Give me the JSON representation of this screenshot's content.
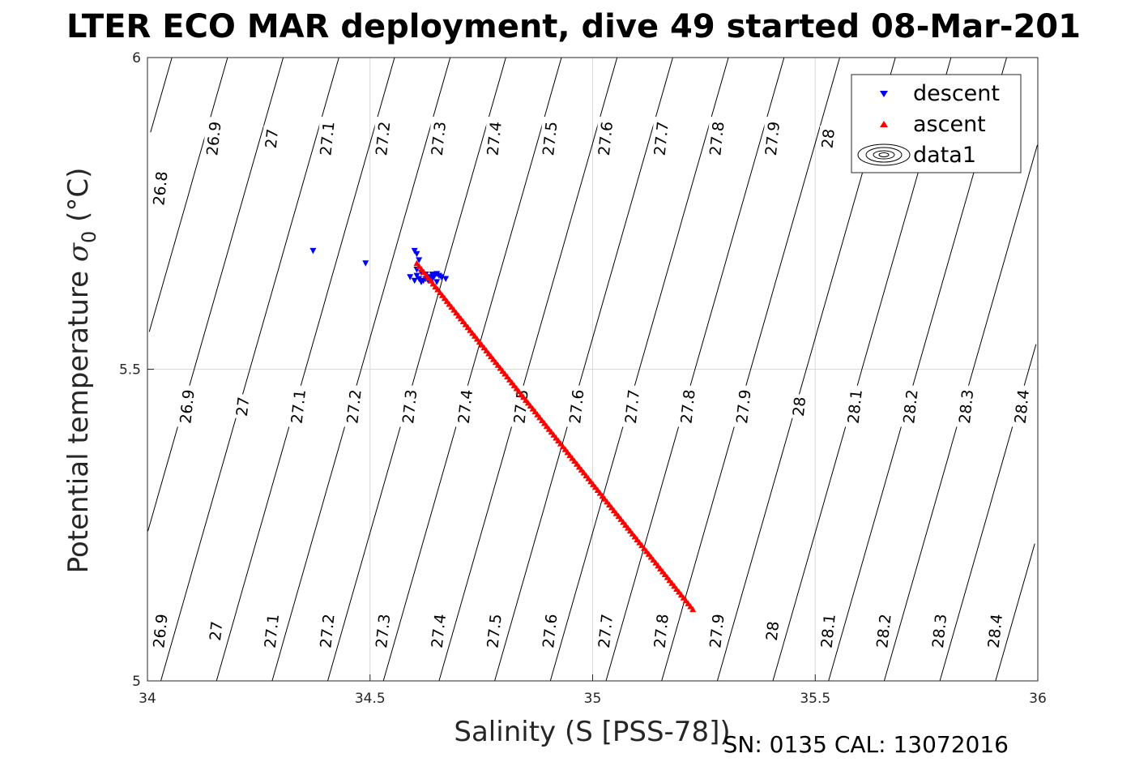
{
  "chart_data": {
    "type": "scatter",
    "title": "LTER ECO MAR deployment, dive 49 started 08-Mar-201",
    "xlabel": "Salinity (S [PSS-78])",
    "ylabel_main": "Potential temperature ",
    "ylabel_sigma": "σ",
    "ylabel_sub": "0",
    "ylabel_unit": " (°C)",
    "footer": "SN: 0135  CAL: 13072016",
    "xlim": [
      34,
      36
    ],
    "ylim": [
      5,
      6
    ],
    "x_ticks": [
      "34",
      "34.5",
      "35",
      "35.5",
      "36"
    ],
    "y_ticks": [
      "5",
      "5.5",
      "6"
    ],
    "grid": true,
    "legend_position": "top-right",
    "legend": [
      "descent",
      "ascent",
      "data1"
    ],
    "colors": {
      "descent": "#0000ff",
      "ascent": "#ff0000",
      "contour": "#000000",
      "grid": "#d9d9d9"
    },
    "contours": {
      "levels": [
        "26.8",
        "26.9",
        "27",
        "27.1",
        "27.2",
        "27.3",
        "27.4",
        "27.5",
        "27.6",
        "27.7",
        "27.8",
        "27.9",
        "28",
        "28.1",
        "28.2",
        "28.3",
        "28.4"
      ],
      "top_labels": [
        {
          "text": "26.8",
          "s": 34.03,
          "t": 5.79
        },
        {
          "text": "26.9",
          "s": 34.15,
          "t": 5.87
        },
        {
          "text": "27",
          "s": 34.28,
          "t": 5.87
        },
        {
          "text": "27.1",
          "s": 34.405,
          "t": 5.87
        },
        {
          "text": "27.2",
          "s": 34.53,
          "t": 5.87
        },
        {
          "text": "27.3",
          "s": 34.655,
          "t": 5.87
        },
        {
          "text": "27.4",
          "s": 34.78,
          "t": 5.87
        },
        {
          "text": "27.5",
          "s": 34.905,
          "t": 5.87
        },
        {
          "text": "27.6",
          "s": 35.03,
          "t": 5.87
        },
        {
          "text": "27.7",
          "s": 35.155,
          "t": 5.87
        },
        {
          "text": "27.8",
          "s": 35.28,
          "t": 5.87
        },
        {
          "text": "27.9",
          "s": 35.405,
          "t": 5.87
        },
        {
          "text": "28",
          "s": 35.53,
          "t": 5.87
        }
      ],
      "mid_labels": [
        {
          "text": "26.9",
          "s": 34.09,
          "t": 5.44
        },
        {
          "text": "27",
          "s": 34.215,
          "t": 5.44
        },
        {
          "text": "27.1",
          "s": 34.34,
          "t": 5.44
        },
        {
          "text": "27.2",
          "s": 34.465,
          "t": 5.44
        },
        {
          "text": "27.3",
          "s": 34.59,
          "t": 5.44
        },
        {
          "text": "27.4",
          "s": 34.715,
          "t": 5.44
        },
        {
          "text": "27.5",
          "s": 34.84,
          "t": 5.44
        },
        {
          "text": "27.6",
          "s": 34.965,
          "t": 5.44
        },
        {
          "text": "27.7",
          "s": 35.09,
          "t": 5.44
        },
        {
          "text": "27.8",
          "s": 35.215,
          "t": 5.44
        },
        {
          "text": "27.9",
          "s": 35.34,
          "t": 5.44
        },
        {
          "text": "28",
          "s": 35.465,
          "t": 5.44
        },
        {
          "text": "28.1",
          "s": 35.59,
          "t": 5.44
        },
        {
          "text": "28.2",
          "s": 35.715,
          "t": 5.44
        },
        {
          "text": "28.3",
          "s": 35.84,
          "t": 5.44
        },
        {
          "text": "28.4",
          "s": 35.965,
          "t": 5.44
        }
      ],
      "bottom_labels": [
        {
          "text": "26.9",
          "s": 34.03,
          "t": 5.08
        },
        {
          "text": "27",
          "s": 34.155,
          "t": 5.08
        },
        {
          "text": "27.1",
          "s": 34.28,
          "t": 5.08
        },
        {
          "text": "27.2",
          "s": 34.405,
          "t": 5.08
        },
        {
          "text": "27.3",
          "s": 34.53,
          "t": 5.08
        },
        {
          "text": "27.4",
          "s": 34.655,
          "t": 5.08
        },
        {
          "text": "27.5",
          "s": 34.78,
          "t": 5.08
        },
        {
          "text": "27.6",
          "s": 34.905,
          "t": 5.08
        },
        {
          "text": "27.7",
          "s": 35.03,
          "t": 5.08
        },
        {
          "text": "27.8",
          "s": 35.155,
          "t": 5.08
        },
        {
          "text": "27.9",
          "s": 35.28,
          "t": 5.08
        },
        {
          "text": "28",
          "s": 35.405,
          "t": 5.08
        },
        {
          "text": "28.1",
          "s": 35.53,
          "t": 5.08
        },
        {
          "text": "28.2",
          "s": 35.655,
          "t": 5.08
        },
        {
          "text": "28.3",
          "s": 35.78,
          "t": 5.08
        },
        {
          "text": "28.4",
          "s": 35.905,
          "t": 5.08
        }
      ]
    },
    "series": [
      {
        "name": "descent",
        "marker": "triangle-down",
        "points": [
          [
            34.372,
            5.69
          ],
          [
            34.49,
            5.67
          ],
          [
            34.6,
            5.69
          ],
          [
            34.605,
            5.685
          ],
          [
            34.61,
            5.675
          ],
          [
            34.59,
            5.648
          ],
          [
            34.6,
            5.642
          ],
          [
            34.605,
            5.65
          ],
          [
            34.61,
            5.645
          ],
          [
            34.615,
            5.64
          ],
          [
            34.62,
            5.642
          ],
          [
            34.625,
            5.645
          ],
          [
            34.63,
            5.643
          ],
          [
            34.635,
            5.648
          ],
          [
            34.64,
            5.652
          ],
          [
            34.645,
            5.65
          ],
          [
            34.65,
            5.653
          ],
          [
            34.655,
            5.65
          ],
          [
            34.66,
            5.648
          ],
          [
            34.67,
            5.645
          ],
          [
            34.605,
            5.66
          ],
          [
            34.615,
            5.655
          ],
          [
            34.625,
            5.652
          ],
          [
            34.64,
            5.645
          ],
          [
            34.65,
            5.64
          ]
        ]
      },
      {
        "name": "ascent",
        "marker": "triangle-up",
        "start": [
          34.605,
          5.67
        ],
        "end": [
          35.225,
          5.115
        ],
        "count": 120
      },
      {
        "name": "data1",
        "marker": "contour"
      }
    ]
  }
}
